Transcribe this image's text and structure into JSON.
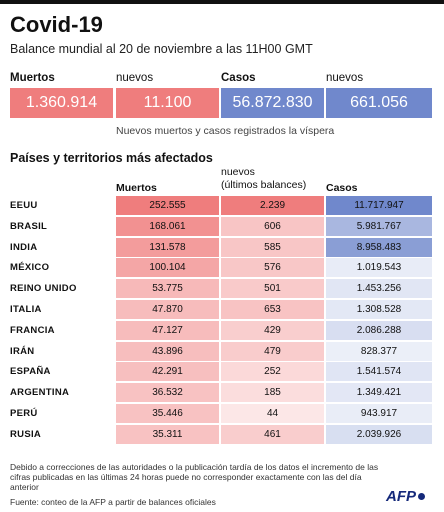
{
  "header": {
    "title": "Covid-19",
    "subtitle": "Balance mundial al 20 de noviembre a las 11H00 GMT"
  },
  "summary": {
    "labels": [
      "Muertos",
      "nuevos",
      "Casos",
      "nuevos"
    ],
    "values": [
      "1.360.914",
      "11.100",
      "56.872.830",
      "661.056"
    ],
    "note": "Nuevos muertos y casos registrados la víspera"
  },
  "table": {
    "title": "Países y territorios más afectados",
    "col_deaths": "Muertos",
    "col_new_line1": "nuevos",
    "col_new_line2": "(últimos balances)",
    "col_cases": "Casos"
  },
  "colors": {
    "deaths_strong": "#ef7d7d",
    "deaths_light": "#fdecec",
    "cases_strong": "#7088cc",
    "cases_light": "#ffffff"
  },
  "chart_data": {
    "type": "table",
    "title": "Países y territorios más afectados",
    "columns": [
      "Muertos",
      "nuevos (últimos balances)",
      "Casos"
    ],
    "rows": [
      {
        "country": "EEUU",
        "deaths": "252.555",
        "new": "2.239",
        "cases": "11.717.947",
        "d": 252555,
        "n": 2239,
        "c": 11717947
      },
      {
        "country": "BRASIL",
        "deaths": "168.061",
        "new": "606",
        "cases": "5.981.767",
        "d": 168061,
        "n": 606,
        "c": 5981767
      },
      {
        "country": "INDIA",
        "deaths": "131.578",
        "new": "585",
        "cases": "8.958.483",
        "d": 131578,
        "n": 585,
        "c": 8958483
      },
      {
        "country": "MÉXICO",
        "deaths": "100.104",
        "new": "576",
        "cases": "1.019.543",
        "d": 100104,
        "n": 576,
        "c": 1019543
      },
      {
        "country": "REINO UNIDO",
        "deaths": "53.775",
        "new": "501",
        "cases": "1.453.256",
        "d": 53775,
        "n": 501,
        "c": 1453256
      },
      {
        "country": "ITALIA",
        "deaths": "47.870",
        "new": "653",
        "cases": "1.308.528",
        "d": 47870,
        "n": 653,
        "c": 1308528
      },
      {
        "country": "FRANCIA",
        "deaths": "47.127",
        "new": "429",
        "cases": "2.086.288",
        "d": 47127,
        "n": 429,
        "c": 2086288
      },
      {
        "country": "IRÁN",
        "deaths": "43.896",
        "new": "479",
        "cases": "828.377",
        "d": 43896,
        "n": 479,
        "c": 828377
      },
      {
        "country": "ESPAÑA",
        "deaths": "42.291",
        "new": "252",
        "cases": "1.541.574",
        "d": 42291,
        "n": 252,
        "c": 1541574
      },
      {
        "country": "ARGENTINA",
        "deaths": "36.532",
        "new": "185",
        "cases": "1.349.421",
        "d": 36532,
        "n": 185,
        "c": 1349421
      },
      {
        "country": "PERÚ",
        "deaths": "35.446",
        "new": "44",
        "cases": "943.917",
        "d": 35446,
        "n": 44,
        "c": 943917
      },
      {
        "country": "RUSIA",
        "deaths": "35.311",
        "new": "461",
        "cases": "2.039.926",
        "d": 35311,
        "n": 461,
        "c": 2039926
      }
    ]
  },
  "footer": {
    "note": "Debido a correcciones de las autoridades o la publicación tardía de los datos  el incremento de las cifras publicadas en las últimas 24 horas puede no corresponder exactamente con las del día anterior",
    "source": "Fuente: conteo de la AFP a partir de balances oficiales",
    "logo": "AFP"
  }
}
